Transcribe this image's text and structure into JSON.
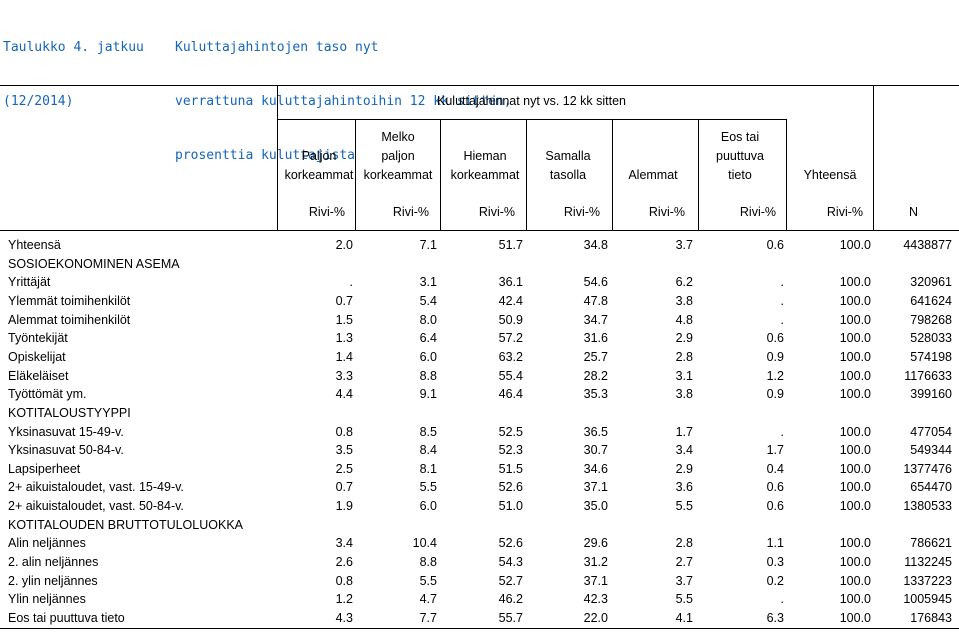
{
  "title": {
    "left_lines": [
      "Taulukko 4. jatkuu",
      "(12/2014)"
    ],
    "right_lines": [
      "Kuluttajahintojen taso nyt",
      "verrattuna kuluttajahintoihin 12 kk sitten,",
      "prosenttia kuluttajista"
    ]
  },
  "header": {
    "group_label": "Kuluttajahinnat nyt vs. 12 kk sitten",
    "columns": [
      [
        "",
        "Paljon",
        "korkeammat"
      ],
      [
        "Melko",
        "paljon",
        "korkeammat"
      ],
      [
        "",
        "Hieman",
        "korkeammat"
      ],
      [
        "",
        "Samalla",
        "tasolla"
      ],
      [
        "",
        "",
        "Alemmat"
      ],
      [
        "Eos tai",
        "puuttuva",
        "tieto"
      ],
      [
        "",
        "",
        "Yhteensä"
      ]
    ],
    "units": [
      "Rivi-%",
      "Rivi-%",
      "Rivi-%",
      "Rivi-%",
      "Rivi-%",
      "Rivi-%",
      "Rivi-%",
      "N"
    ]
  },
  "rows": [
    {
      "label": "Yhteensä",
      "values": [
        "2.0",
        "7.1",
        "51.7",
        "34.8",
        "3.7",
        "0.6",
        "100.0",
        "4438877"
      ]
    },
    {
      "label": "SOSIOEKONOMINEN ASEMA",
      "values": []
    },
    {
      "label": "Yrittäjät",
      "values": [
        ".",
        "3.1",
        "36.1",
        "54.6",
        "6.2",
        ".",
        "100.0",
        "320961"
      ]
    },
    {
      "label": "Ylemmät toimihenkilöt",
      "values": [
        "0.7",
        "5.4",
        "42.4",
        "47.8",
        "3.8",
        ".",
        "100.0",
        "641624"
      ]
    },
    {
      "label": "Alemmat toimihenkilöt",
      "values": [
        "1.5",
        "8.0",
        "50.9",
        "34.7",
        "4.8",
        ".",
        "100.0",
        "798268"
      ]
    },
    {
      "label": "Työntekijät",
      "values": [
        "1.3",
        "6.4",
        "57.2",
        "31.6",
        "2.9",
        "0.6",
        "100.0",
        "528033"
      ]
    },
    {
      "label": "Opiskelijat",
      "values": [
        "1.4",
        "6.0",
        "63.2",
        "25.7",
        "2.8",
        "0.9",
        "100.0",
        "574198"
      ]
    },
    {
      "label": "Eläkeläiset",
      "values": [
        "3.3",
        "8.8",
        "55.4",
        "28.2",
        "3.1",
        "1.2",
        "100.0",
        "1176633"
      ]
    },
    {
      "label": "Työttömät ym.",
      "values": [
        "4.4",
        "9.1",
        "46.4",
        "35.3",
        "3.8",
        "0.9",
        "100.0",
        "399160"
      ]
    },
    {
      "label": "KOTITALOUSTYYPPI",
      "values": []
    },
    {
      "label": "Yksinasuvat 15-49-v.",
      "values": [
        "0.8",
        "8.5",
        "52.5",
        "36.5",
        "1.7",
        ".",
        "100.0",
        "477054"
      ]
    },
    {
      "label": "Yksinasuvat 50-84-v.",
      "values": [
        "3.5",
        "8.4",
        "52.3",
        "30.7",
        "3.4",
        "1.7",
        "100.0",
        "549344"
      ]
    },
    {
      "label": "Lapsiperheet",
      "values": [
        "2.5",
        "8.1",
        "51.5",
        "34.6",
        "2.9",
        "0.4",
        "100.0",
        "1377476"
      ]
    },
    {
      "label": "2+ aikuistaloudet, vast. 15-49-v.",
      "values": [
        "0.7",
        "5.5",
        "52.6",
        "37.1",
        "3.6",
        "0.6",
        "100.0",
        "654470"
      ]
    },
    {
      "label": "2+ aikuistaloudet, vast. 50-84-v.",
      "values": [
        "1.9",
        "6.0",
        "51.0",
        "35.0",
        "5.5",
        "0.6",
        "100.0",
        "1380533"
      ]
    },
    {
      "label": "KOTITALOUDEN BRUTTOTULOLUOKKA",
      "values": []
    },
    {
      "label": "Alin neljännes",
      "values": [
        "3.4",
        "10.4",
        "52.6",
        "29.6",
        "2.8",
        "1.1",
        "100.0",
        "786621"
      ]
    },
    {
      "label": "2. alin neljännes",
      "values": [
        "2.6",
        "8.8",
        "54.3",
        "31.2",
        "2.7",
        "0.3",
        "100.0",
        "1132245"
      ]
    },
    {
      "label": "2. ylin neljännes",
      "values": [
        "0.8",
        "5.5",
        "52.7",
        "37.1",
        "3.7",
        "0.2",
        "100.0",
        "1337223"
      ]
    },
    {
      "label": "Ylin neljännes",
      "values": [
        "1.2",
        "4.7",
        "46.2",
        "42.3",
        "5.5",
        ".",
        "100.0",
        "1005945"
      ]
    },
    {
      "label": "Eos tai puuttuva tieto",
      "values": [
        "4.3",
        "7.7",
        "55.7",
        "22.0",
        "4.1",
        "6.3",
        "100.0",
        "176843"
      ]
    }
  ]
}
